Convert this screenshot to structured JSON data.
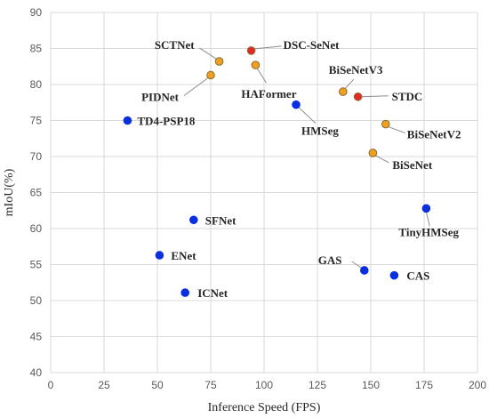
{
  "chart_data": {
    "type": "scatter",
    "xlabel": "Inference Speed (FPS)",
    "ylabel": "mIoU(%)",
    "xlim": [
      0,
      200
    ],
    "ylim": [
      40,
      90
    ],
    "xticks": [
      0,
      25,
      50,
      75,
      100,
      125,
      150,
      175,
      200
    ],
    "yticks": [
      40,
      45,
      50,
      55,
      60,
      65,
      70,
      75,
      80,
      85,
      90
    ],
    "grid": "both",
    "marker_colors": {
      "blue": "#0a2fe0",
      "orange": "#f0a020",
      "red": "#e8262b"
    },
    "points": [
      {
        "label": "SCTNet",
        "x": 79,
        "y": 83.2,
        "style": "orange"
      },
      {
        "label": "DSC-SeNet",
        "x": 94,
        "y": 84.7,
        "style": "red"
      },
      {
        "label": "HAFormer",
        "x": 96,
        "y": 82.7,
        "style": "orange"
      },
      {
        "label": "PIDNet",
        "x": 75,
        "y": 81.3,
        "style": "orange"
      },
      {
        "label": "BiSeNetV3",
        "x": 137,
        "y": 79.0,
        "style": "orange"
      },
      {
        "label": "STDC",
        "x": 144,
        "y": 78.3,
        "style": "red"
      },
      {
        "label": "HMSeg",
        "x": 115,
        "y": 77.2,
        "style": "blue"
      },
      {
        "label": "TD4-PSP18",
        "x": 36,
        "y": 75.0,
        "style": "blue"
      },
      {
        "label": "BiSeNetV2",
        "x": 157,
        "y": 74.5,
        "style": "orange"
      },
      {
        "label": "BiSeNet",
        "x": 151,
        "y": 70.5,
        "style": "orange"
      },
      {
        "label": "TinyHMSeg",
        "x": 176,
        "y": 62.8,
        "style": "blue"
      },
      {
        "label": "SFNet",
        "x": 67,
        "y": 61.2,
        "style": "blue"
      },
      {
        "label": "ENet",
        "x": 51,
        "y": 56.3,
        "style": "blue"
      },
      {
        "label": "GAS",
        "x": 147,
        "y": 54.2,
        "style": "blue"
      },
      {
        "label": "CAS",
        "x": 161,
        "y": 53.5,
        "style": "blue"
      },
      {
        "label": "ICNet",
        "x": 63,
        "y": 51.1,
        "style": "blue"
      }
    ]
  }
}
